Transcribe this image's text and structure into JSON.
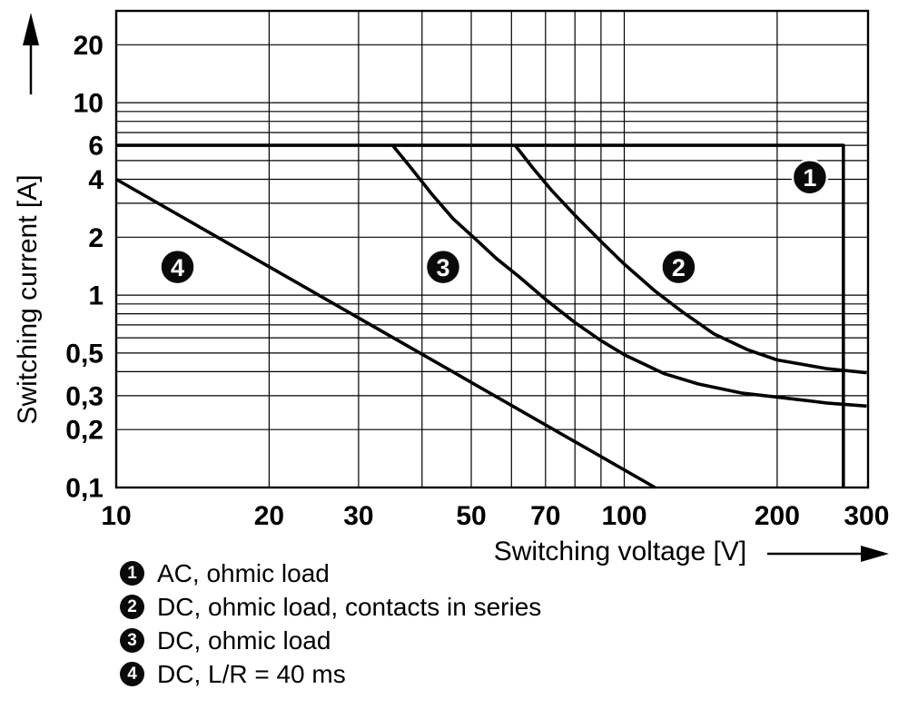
{
  "legend": {
    "items": [
      {
        "num": "1",
        "label": "AC, ohmic load"
      },
      {
        "num": "2",
        "label": "DC, ohmic load, contacts in series"
      },
      {
        "num": "3",
        "label": "DC, ohmic load"
      },
      {
        "num": "4",
        "label": "DC, L/R = 40 ms"
      }
    ]
  },
  "chart_data": {
    "type": "line",
    "xlabel": "Switching voltage [V]",
    "ylabel": "Switching current [A]",
    "x_scale": "log",
    "y_scale": "log",
    "xlim": [
      10,
      302
    ],
    "ylim": [
      0.1,
      30
    ],
    "grid": true,
    "x_ticks": [
      10,
      20,
      30,
      50,
      70,
      100,
      200,
      300
    ],
    "x_tick_labels": [
      "10",
      "20",
      "30",
      "50",
      "70",
      "100",
      "200",
      "300"
    ],
    "y_ticks": [
      20,
      10,
      6,
      4,
      2,
      1,
      0.5,
      0.3,
      0.2,
      0.1
    ],
    "y_tick_labels": [
      "20",
      "10",
      "6",
      "4",
      "2",
      "1",
      "0,5",
      "0,3",
      "0,2",
      "0,1"
    ],
    "x_grid": [
      20,
      30,
      40,
      50,
      60,
      70,
      80,
      90,
      100,
      200
    ],
    "y_grid": [
      0.2,
      0.3,
      0.4,
      0.5,
      0.6,
      0.7,
      0.8,
      0.9,
      1,
      2,
      3,
      4,
      5,
      6,
      7,
      8,
      9,
      10,
      20
    ],
    "series": [
      {
        "id": 1,
        "name": "AC, ohmic load",
        "points": [
          [
            10,
            6
          ],
          [
            270,
            6
          ],
          [
            270,
            0.1
          ]
        ]
      },
      {
        "id": 2,
        "name": "DC, ohmic load, contacts in series",
        "points": [
          [
            61,
            6
          ],
          [
            66,
            4.6
          ],
          [
            72,
            3.5
          ],
          [
            80,
            2.6
          ],
          [
            90,
            1.9
          ],
          [
            100,
            1.45
          ],
          [
            115,
            1.05
          ],
          [
            130,
            0.82
          ],
          [
            150,
            0.63
          ],
          [
            175,
            0.52
          ],
          [
            200,
            0.46
          ],
          [
            250,
            0.415
          ],
          [
            300,
            0.395
          ]
        ]
      },
      {
        "id": 3,
        "name": "DC, ohmic load",
        "points": [
          [
            35,
            6
          ],
          [
            38,
            4.6
          ],
          [
            42,
            3.3
          ],
          [
            46,
            2.5
          ],
          [
            51,
            1.95
          ],
          [
            56,
            1.55
          ],
          [
            62,
            1.25
          ],
          [
            70,
            0.95
          ],
          [
            80,
            0.72
          ],
          [
            90,
            0.58
          ],
          [
            100,
            0.49
          ],
          [
            120,
            0.39
          ],
          [
            140,
            0.345
          ],
          [
            170,
            0.31
          ],
          [
            200,
            0.295
          ],
          [
            250,
            0.275
          ],
          [
            300,
            0.265
          ]
        ]
      },
      {
        "id": 4,
        "name": "DC, L/R = 40 ms",
        "points": [
          [
            10,
            4
          ],
          [
            115,
            0.1
          ]
        ]
      }
    ],
    "badges": [
      {
        "label": "1",
        "x": 232,
        "y": 4.1
      },
      {
        "label": "2",
        "x": 128,
        "y": 1.4
      },
      {
        "label": "3",
        "x": 44,
        "y": 1.4
      },
      {
        "label": "4",
        "x": 13.2,
        "y": 1.4
      }
    ]
  }
}
